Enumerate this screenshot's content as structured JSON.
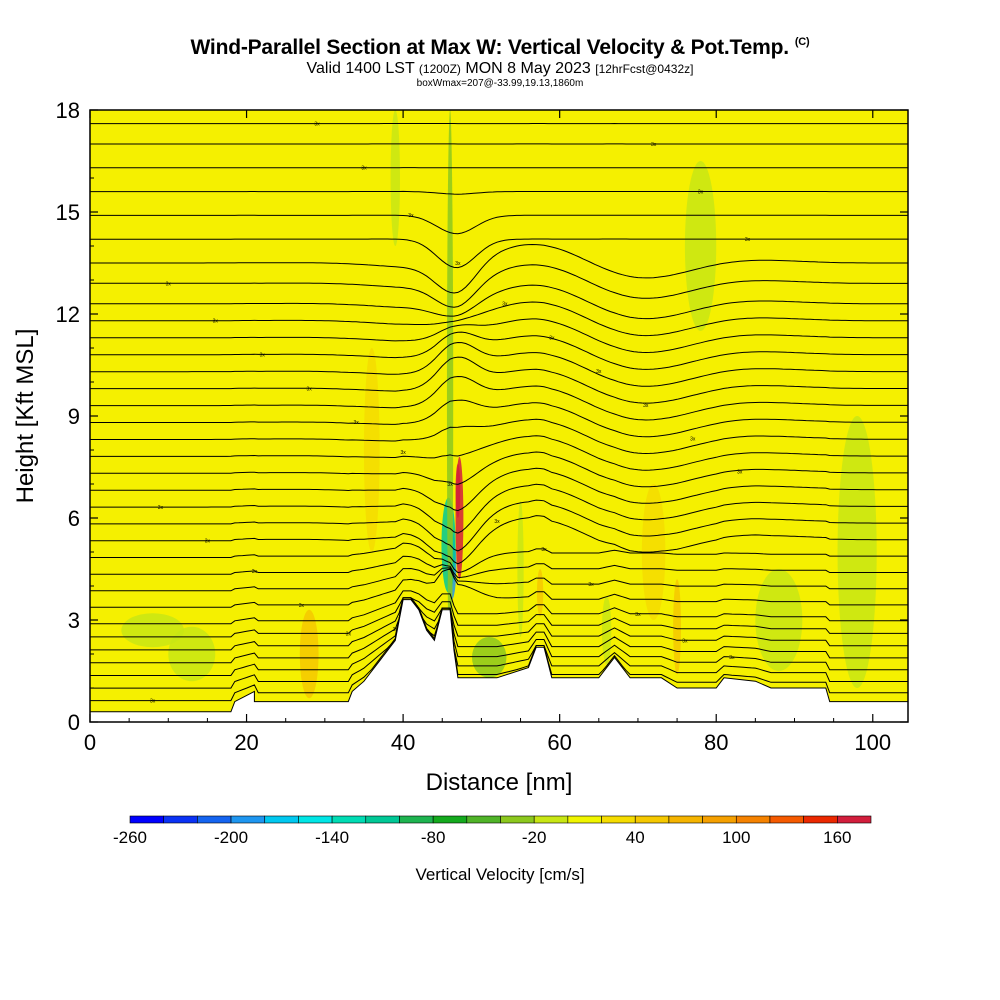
{
  "header": {
    "title": "Wind-Parallel Section at Max W: Vertical Velocity & Pot.Temp.",
    "title_mark": "(C)",
    "subtitle_main": "Valid 1400 LST",
    "subtitle_utc": "(1200Z)",
    "subtitle_date": "MON 8 May 2023",
    "subtitle_fcst": "[12hrFcst@0432z]",
    "note": "boxWmax=207@-33.99,19.13,1860m"
  },
  "chart_data": {
    "type": "heatmap",
    "xlabel": "Distance [nm]",
    "ylabel": "Height [Kft MSL]",
    "xlim": [
      0,
      104.5
    ],
    "ylim": [
      0,
      18
    ],
    "xticks": [
      "0",
      "20",
      "40",
      "60",
      "80",
      "100"
    ],
    "yticks": [
      "0",
      "3",
      "6",
      "9",
      "12",
      "15",
      "18"
    ],
    "grid": false,
    "colorbar": {
      "label": "Vertical Velocity [cm/s]",
      "ticks": [
        "-260",
        "-200",
        "-140",
        "-80",
        "-20",
        "40",
        "100",
        "160"
      ],
      "levels": [
        -260,
        -240,
        -220,
        -200,
        -180,
        -160,
        -140,
        -120,
        -100,
        -80,
        -60,
        -40,
        -20,
        0,
        20,
        40,
        60,
        80,
        100,
        120,
        140,
        160,
        180
      ],
      "colors": [
        "#0000ff",
        "#0a32f5",
        "#1464f0",
        "#1e96f0",
        "#00c8f0",
        "#00e6e6",
        "#00dcb4",
        "#00c896",
        "#1eb450",
        "#14aa1e",
        "#50b428",
        "#8cc81e",
        "#c8e614",
        "#f0f500",
        "#f5dc00",
        "#f5c800",
        "#f5b400",
        "#f5a000",
        "#f58200",
        "#f55a00",
        "#eb2800",
        "#d21e3c"
      ]
    },
    "background_color": "#f5f000",
    "terrain": [
      [
        0,
        0.3
      ],
      [
        18,
        0.3
      ],
      [
        18.5,
        0.6
      ],
      [
        21,
        0.9
      ],
      [
        21,
        0.6
      ],
      [
        30,
        0.6
      ],
      [
        33,
        0.6
      ],
      [
        33.5,
        0.9
      ],
      [
        35,
        1.2
      ],
      [
        36,
        1.5
      ],
      [
        38,
        2.1
      ],
      [
        39,
        2.4
      ],
      [
        40,
        3.6
      ],
      [
        41,
        3.6
      ],
      [
        42,
        3.3
      ],
      [
        43,
        2.7
      ],
      [
        44,
        2.4
      ],
      [
        45,
        3.3
      ],
      [
        46,
        3.3
      ],
      [
        46.5,
        2.1
      ],
      [
        47,
        1.3
      ],
      [
        48,
        1.3
      ],
      [
        52,
        1.3
      ],
      [
        56,
        1.6
      ],
      [
        57,
        2.2
      ],
      [
        58,
        2.2
      ],
      [
        59,
        1.3
      ],
      [
        65,
        1.3
      ],
      [
        67,
        1.9
      ],
      [
        68,
        1.6
      ],
      [
        69,
        1.3
      ],
      [
        73,
        1.3
      ],
      [
        75,
        1.0
      ],
      [
        80,
        1.0
      ],
      [
        81,
        1.3
      ],
      [
        85,
        1.2
      ],
      [
        87,
        1.0
      ],
      [
        94,
        1.0
      ],
      [
        94.5,
        0.6
      ],
      [
        104.5,
        0.6
      ]
    ],
    "anomalies": [
      {
        "x": 47.2,
        "y": 6.0,
        "rx": 0.5,
        "ry": 1.8,
        "value": 207
      },
      {
        "x": 47.0,
        "y": 6.8,
        "rx": 0.3,
        "ry": 0.8,
        "value": 160
      },
      {
        "x": 46.2,
        "y": 4.6,
        "rx": 0.6,
        "ry": 1.0,
        "value": -200
      },
      {
        "x": 45.8,
        "y": 5.2,
        "rx": 0.9,
        "ry": 1.4,
        "value": -120
      },
      {
        "x": 46.0,
        "y": 9.5,
        "rx": 0.4,
        "ry": 8.5,
        "value": -40
      },
      {
        "x": 51.0,
        "y": 1.9,
        "rx": 2.2,
        "ry": 0.6,
        "value": -40
      },
      {
        "x": 57.5,
        "y": 3.8,
        "rx": 0.4,
        "ry": 0.7,
        "value": 40
      },
      {
        "x": 28.0,
        "y": 2.0,
        "rx": 1.2,
        "ry": 1.3,
        "value": 40
      },
      {
        "x": 75.0,
        "y": 2.8,
        "rx": 0.5,
        "ry": 1.4,
        "value": 40
      },
      {
        "x": 39.0,
        "y": 16.0,
        "rx": 0.6,
        "ry": 2.0,
        "value": -20
      },
      {
        "x": 55.0,
        "y": 4.5,
        "rx": 0.4,
        "ry": 2.0,
        "value": -20
      },
      {
        "x": 13.0,
        "y": 2.0,
        "rx": 3.0,
        "ry": 0.8,
        "value": -20
      },
      {
        "x": 8.0,
        "y": 2.7,
        "rx": 4.0,
        "ry": 0.5,
        "value": -20
      },
      {
        "x": 98.0,
        "y": 5.0,
        "rx": 2.5,
        "ry": 4.0,
        "value": -20
      },
      {
        "x": 88.0,
        "y": 3.0,
        "rx": 3.0,
        "ry": 1.5,
        "value": -20
      },
      {
        "x": 66.0,
        "y": 2.7,
        "rx": 0.6,
        "ry": 1.0,
        "value": -20
      },
      {
        "x": 78.0,
        "y": 14.0,
        "rx": 2.0,
        "ry": 2.5,
        "value": -20
      },
      {
        "x": 72.0,
        "y": 5.0,
        "rx": 1.5,
        "ry": 2.0,
        "value": 20
      },
      {
        "x": 36.0,
        "y": 8.0,
        "rx": 1.0,
        "ry": 3.0,
        "value": 20
      }
    ],
    "isentrope_levels": [
      0.4,
      0.8,
      1.2,
      1.6,
      2.0,
      2.4,
      2.8,
      3.3,
      3.8,
      4.3,
      4.8,
      5.3,
      5.8,
      6.3,
      6.8,
      7.3,
      7.8,
      8.3,
      8.8,
      9.3,
      9.8,
      10.3,
      10.8,
      11.3,
      11.8,
      12.3,
      12.9,
      13.5,
      14.2,
      14.9,
      15.6,
      16.3,
      17.0,
      17.6
    ],
    "isentrope_label": "3x"
  }
}
